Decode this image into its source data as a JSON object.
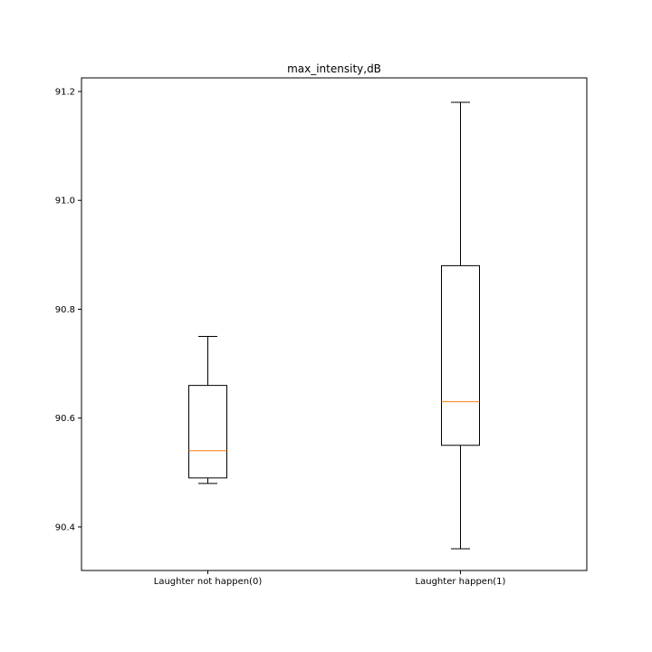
{
  "chart_data": {
    "type": "box",
    "title": "max_intensity,dB",
    "xlabel": "",
    "ylabel": "",
    "ylim": [
      90.32,
      91.225
    ],
    "yticks": [
      90.4,
      90.6,
      90.8,
      91.0,
      91.2
    ],
    "ytick_labels": [
      "90.4",
      "90.6",
      "90.8",
      "91.0",
      "91.2"
    ],
    "categories": [
      "Laughter not happen(0)",
      "Laughter happen(1)"
    ],
    "boxes": [
      {
        "category": "Laughter not happen(0)",
        "whisker_low": 90.48,
        "q1": 90.49,
        "median": 90.54,
        "q3": 90.66,
        "whisker_high": 90.75
      },
      {
        "category": "Laughter happen(1)",
        "whisker_low": 90.36,
        "q1": 90.55,
        "median": 90.63,
        "q3": 90.88,
        "whisker_high": 91.18
      }
    ],
    "colors": {
      "box": "#000000",
      "median": "#ff7f0e"
    },
    "grid": false,
    "legend": "none"
  }
}
